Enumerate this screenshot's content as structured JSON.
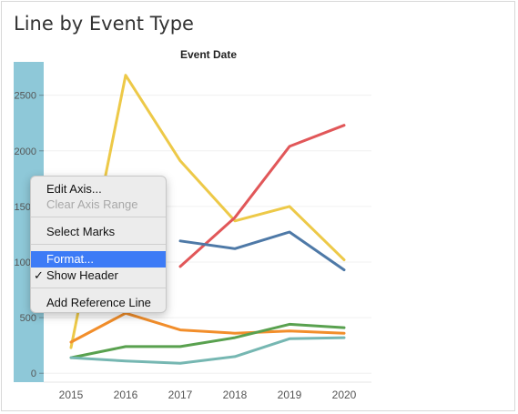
{
  "page_title": "Line by Event Type",
  "colors": {
    "axis_highlight": "#8ec8d8",
    "accent": "#3d7bf6",
    "series": [
      "#4e79a7",
      "#e15759",
      "#edc948",
      "#f28e2b",
      "#59a14f",
      "#76b7b2"
    ]
  },
  "context_menu": {
    "items": [
      {
        "label": "Edit Axis...",
        "enabled": true
      },
      {
        "label": "Clear Axis Range",
        "enabled": false
      },
      {
        "label": "Select Marks",
        "enabled": true
      },
      {
        "label": "Format...",
        "enabled": true,
        "highlighted": true
      },
      {
        "label": "Show Header",
        "enabled": true,
        "checked": true
      },
      {
        "label": "Add Reference Line",
        "enabled": true
      }
    ],
    "checkmark": "✓"
  },
  "chart_data": {
    "type": "line",
    "title": "Event Date",
    "x": [
      2015,
      2016,
      2017,
      2018,
      2019,
      2020
    ],
    "xtick_labels": [
      "2015",
      "2016",
      "2017",
      "2018",
      "2019",
      "2020"
    ],
    "ytick_labels": [
      "0",
      "500",
      "1000",
      "1500",
      "2000",
      "2500"
    ],
    "ytick_values": [
      0,
      500,
      1000,
      1500,
      2000,
      2500
    ],
    "ylim": [
      -80,
      2800
    ],
    "grid": true,
    "series": [
      {
        "color": "#edc948",
        "values": [
          230,
          2680,
          1910,
          1370,
          1500,
          1020
        ]
      },
      {
        "color": "#e15759",
        "values": [
          null,
          null,
          960,
          1400,
          2040,
          2230
        ]
      },
      {
        "color": "#4e79a7",
        "values": [
          null,
          null,
          1190,
          1120,
          1270,
          930
        ]
      },
      {
        "color": "#f28e2b",
        "values": [
          280,
          540,
          390,
          360,
          380,
          360
        ]
      },
      {
        "color": "#59a14f",
        "values": [
          140,
          240,
          240,
          320,
          440,
          410
        ]
      },
      {
        "color": "#76b7b2",
        "values": [
          140,
          110,
          90,
          150,
          310,
          320
        ]
      }
    ]
  }
}
